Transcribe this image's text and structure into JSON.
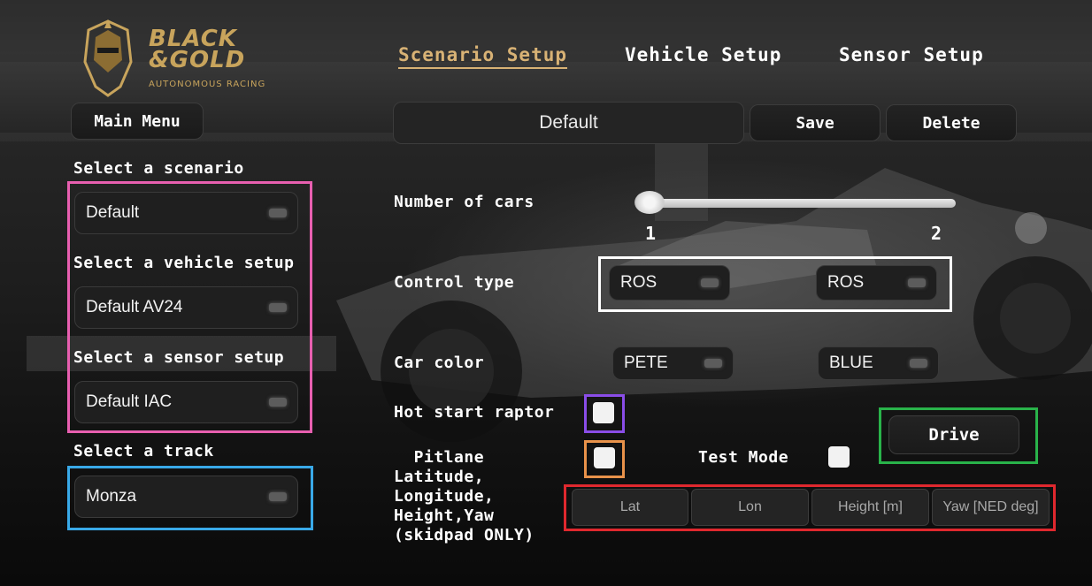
{
  "brand": {
    "line1": "BLACK",
    "line2": "&GOLD",
    "line3": "AUTONOMOUS RACING",
    "color": "#c8a45c"
  },
  "tabs": [
    {
      "label": "Scenario Setup",
      "active": true
    },
    {
      "label": "Vehicle Setup",
      "active": false
    },
    {
      "label": "Sensor Setup",
      "active": false
    }
  ],
  "main_menu_label": "Main Menu",
  "scenario_name": {
    "value": "Default"
  },
  "actions": {
    "save": "Save",
    "delete": "Delete",
    "drive": "Drive"
  },
  "left_panel": {
    "scenario": {
      "label": "Select a scenario",
      "value": "Default"
    },
    "vehicle": {
      "label": "Select a vehicle setup",
      "value": "Default AV24"
    },
    "sensor": {
      "label": "Select a sensor setup",
      "value": "Default IAC"
    },
    "track": {
      "label": "Select a track",
      "value": "Monza"
    }
  },
  "num_cars": {
    "label": "Number of cars",
    "min": "1",
    "max": "2",
    "value": 1
  },
  "control_type": {
    "label": "Control type",
    "car1": "ROS",
    "car2": "ROS"
  },
  "car_color": {
    "label": "Car color",
    "car1": "PETE",
    "car2": "BLUE"
  },
  "hot_start": {
    "label": "Hot start raptor",
    "checked": false
  },
  "pitlane": {
    "label": "  Pitlane\nLatitude,\nLongitude,\nHeight,Yaw\n(skidpad ONLY)",
    "checked": false
  },
  "test_mode": {
    "label": "Test Mode",
    "checked": false
  },
  "coords": {
    "lat": "Lat",
    "lon": "Lon",
    "height": "Height [m]",
    "yaw": "Yaw [NED deg]"
  },
  "highlight_colors": {
    "pink": "#e85fb0",
    "blue": "#39a9e8",
    "white": "#ffffff",
    "purple": "#8a4de8",
    "orange": "#e8924a",
    "green": "#29b34a",
    "red": "#e0282e"
  }
}
